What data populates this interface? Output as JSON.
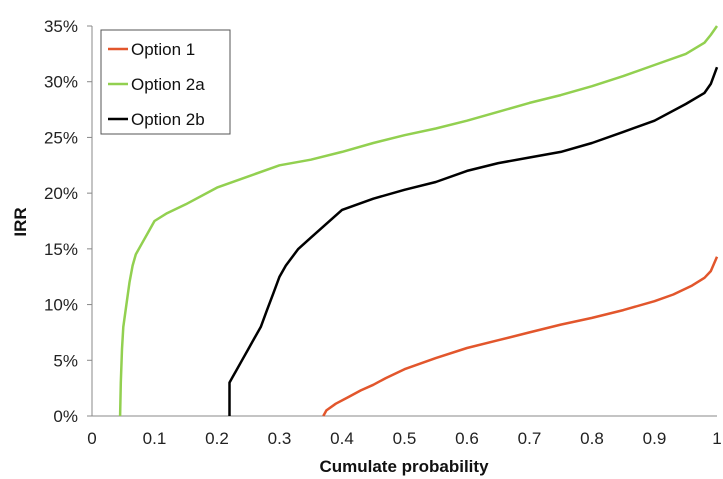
{
  "chart_data": {
    "type": "line",
    "xlabel": "Cumulate probability",
    "ylabel": "IRR",
    "xlim": [
      0,
      1
    ],
    "ylim": [
      0,
      0.35
    ],
    "x_ticks": [
      0,
      0.1,
      0.2,
      0.3,
      0.4,
      0.5,
      0.6,
      0.7,
      0.8,
      0.9,
      1
    ],
    "x_tick_labels": [
      "0",
      "0.1",
      "0.2",
      "0.3",
      "0.4",
      "0.5",
      "0.6",
      "0.7",
      "0.8",
      "0.9",
      "1"
    ],
    "y_ticks": [
      0,
      0.05,
      0.1,
      0.15,
      0.2,
      0.25,
      0.3,
      0.35
    ],
    "y_tick_labels": [
      "0%",
      "5%",
      "10%",
      "15%",
      "20%",
      "25%",
      "30%",
      "35%"
    ],
    "grid": false,
    "legend_position": "top-left",
    "series": [
      {
        "name": "Option 1",
        "color": "#E2562C",
        "x": [
          0.37,
          0.375,
          0.39,
          0.41,
          0.43,
          0.45,
          0.47,
          0.5,
          0.55,
          0.6,
          0.65,
          0.7,
          0.75,
          0.8,
          0.85,
          0.9,
          0.93,
          0.96,
          0.98,
          0.99,
          1.0
        ],
        "y": [
          0.0,
          0.005,
          0.011,
          0.017,
          0.023,
          0.028,
          0.034,
          0.042,
          0.052,
          0.061,
          0.068,
          0.075,
          0.082,
          0.088,
          0.095,
          0.103,
          0.109,
          0.117,
          0.124,
          0.13,
          0.143
        ]
      },
      {
        "name": "Option 2a",
        "color": "#92D050",
        "x": [
          0.045,
          0.046,
          0.048,
          0.05,
          0.055,
          0.06,
          0.065,
          0.07,
          0.08,
          0.09,
          0.1,
          0.12,
          0.15,
          0.2,
          0.25,
          0.3,
          0.35,
          0.4,
          0.45,
          0.5,
          0.55,
          0.6,
          0.65,
          0.7,
          0.75,
          0.8,
          0.85,
          0.9,
          0.95,
          0.98,
          0.99,
          1.0
        ],
        "y": [
          0.0,
          0.03,
          0.06,
          0.08,
          0.1,
          0.12,
          0.135,
          0.145,
          0.155,
          0.165,
          0.175,
          0.182,
          0.19,
          0.205,
          0.215,
          0.225,
          0.23,
          0.237,
          0.245,
          0.252,
          0.258,
          0.265,
          0.273,
          0.281,
          0.288,
          0.296,
          0.305,
          0.315,
          0.325,
          0.335,
          0.342,
          0.35
        ]
      },
      {
        "name": "Option 2b",
        "color": "#000000",
        "x": [
          0.22,
          0.22,
          0.225,
          0.23,
          0.24,
          0.25,
          0.26,
          0.27,
          0.28,
          0.29,
          0.3,
          0.31,
          0.33,
          0.35,
          0.37,
          0.4,
          0.45,
          0.5,
          0.55,
          0.6,
          0.65,
          0.7,
          0.75,
          0.8,
          0.85,
          0.9,
          0.95,
          0.98,
          0.99,
          1.0
        ],
        "y": [
          0.0,
          0.03,
          0.035,
          0.04,
          0.05,
          0.06,
          0.07,
          0.08,
          0.095,
          0.11,
          0.125,
          0.135,
          0.15,
          0.16,
          0.17,
          0.185,
          0.195,
          0.203,
          0.21,
          0.22,
          0.227,
          0.232,
          0.237,
          0.245,
          0.255,
          0.265,
          0.28,
          0.29,
          0.298,
          0.313
        ]
      }
    ]
  }
}
